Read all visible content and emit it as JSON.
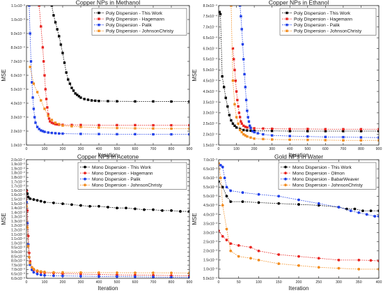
{
  "chart_data": [
    {
      "type": "line",
      "title": "Copper NPs in Methanol",
      "xlabel": "Iteration",
      "ylabel": "MSE",
      "xlim": [
        0,
        900
      ],
      "ylim": [
        0.0001,
        0.0011
      ],
      "x_ticks": [
        "0",
        "100",
        "200",
        "300",
        "400",
        "500",
        "600",
        "700",
        "800",
        "900"
      ],
      "y_ticks": [
        "1.0x10⁻⁴",
        "2.0x10⁻⁴",
        "3.0x10⁻⁴",
        "4.0x10⁻⁴",
        "5.0x10⁻⁴",
        "6.0x10⁻⁴",
        "7.0x10⁻⁴",
        "8.0x10⁻⁴",
        "9.0x10⁻⁴",
        "1.0x10⁻³",
        "1.1x10⁻³"
      ],
      "grid": false,
      "legend_position": "top-right",
      "series": [
        {
          "name": "Poly Dispersion - This Work",
          "color": "#000000",
          "x": [
            140,
            150,
            160,
            170,
            180,
            190,
            200,
            210,
            220,
            230,
            240,
            250,
            260,
            270,
            280,
            290,
            300,
            320,
            340,
            360,
            380,
            400,
            450,
            500,
            600,
            700,
            800,
            900
          ],
          "y": [
            0.0011,
            0.00103,
            0.00098,
            0.00093,
            0.00088,
            0.00082,
            0.00076,
            0.00069,
            0.00062,
            0.00057,
            0.00054,
            0.00051,
            0.00049,
            0.00047,
            0.00046,
            0.00045,
            0.00044,
            0.00043,
            0.000425,
            0.00042,
            0.000418,
            0.000416,
            0.000415,
            0.000414,
            0.000413,
            0.000413,
            0.000412,
            0.000412
          ]
        },
        {
          "name": "Poly Dispersion - Hagemann",
          "color": "#e8231f",
          "x": [
            70,
            80,
            90,
            95,
            100,
            105,
            110,
            115,
            120,
            125,
            130,
            140,
            150,
            160,
            170,
            180,
            200,
            250,
            300,
            400,
            500,
            600,
            700,
            800,
            900
          ],
          "y": [
            0.0011,
            0.00095,
            0.0008,
            0.0007,
            0.0006,
            0.0005,
            0.00043,
            0.00037,
            0.00032,
            0.00029,
            0.00027,
            0.00026,
            0.000255,
            0.00025,
            0.000248,
            0.000246,
            0.000245,
            0.000244,
            0.000244,
            0.000243,
            0.000243,
            0.000243,
            0.000242,
            0.000242,
            0.000242
          ]
        },
        {
          "name": "Poly Dispersion - Palik",
          "color": "#1f3fe8",
          "x": [
            15,
            20,
            25,
            30,
            35,
            40,
            45,
            50,
            60,
            70,
            80,
            90,
            100,
            120,
            140,
            160,
            180,
            200,
            300,
            400,
            500,
            600,
            700,
            800,
            900
          ],
          "y": [
            0.0011,
            0.0009,
            0.0007,
            0.00055,
            0.00044,
            0.00036,
            0.0003,
            0.00026,
            0.00023,
            0.000215,
            0.000205,
            0.0002,
            0.000195,
            0.00019,
            0.000187,
            0.000185,
            0.000183,
            0.000182,
            0.00018,
            0.000179,
            0.000178,
            0.000178,
            0.000177,
            0.000177,
            0.000177
          ]
        },
        {
          "name": "Poly Dispersion - JohnsonChristy",
          "color": "#f28c1e",
          "x": [
            20,
            40,
            60,
            80,
            100,
            120,
            140,
            160,
            180,
            200,
            250,
            300,
            400,
            500,
            600,
            700,
            800,
            900
          ],
          "y": [
            0.00066,
            0.00054,
            0.00048,
            0.00042,
            0.00036,
            0.00031,
            0.00028,
            0.00026,
            0.00025,
            0.00024,
            0.000235,
            0.00023,
            0.000225,
            0.000222,
            0.00022,
            0.000219,
            0.000218,
            0.000218
          ]
        }
      ]
    },
    {
      "type": "line",
      "title": "Copper NPs in Ethanol",
      "xlabel": "Iteration",
      "ylabel": "MSE",
      "xlim": [
        0,
        900
      ],
      "ylim": [
        0.00015,
        0.0008
      ],
      "x_ticks": [
        "0",
        "100",
        "200",
        "300",
        "400",
        "500",
        "600",
        "700",
        "800",
        "900"
      ],
      "y_ticks": [
        "1.5x10⁻⁴",
        "2.0x10⁻⁴",
        "2.5x10⁻⁴",
        "3.0x10⁻⁴",
        "3.5x10⁻⁴",
        "4.0x10⁻⁴",
        "4.5x10⁻⁴",
        "5.0x10⁻⁴",
        "5.5x10⁻⁴",
        "6.0x10⁻⁴",
        "6.5x10⁻⁴",
        "7.0x10⁻⁴",
        "7.5x10⁻⁴",
        "8.0x10⁻⁴"
      ],
      "grid": false,
      "legend_position": "top-right",
      "series": [
        {
          "name": "Poly Dispersion - This Work",
          "color": "#000000",
          "x": [
            5,
            10,
            20,
            30,
            40,
            50,
            60,
            70,
            80,
            90,
            100,
            120,
            140,
            160,
            180,
            200,
            300,
            400,
            500,
            600,
            700,
            800,
            900
          ],
          "y": [
            0.00077,
            0.00076,
            0.00047,
            0.00042,
            0.00037,
            0.00033,
            0.00029,
            0.000265,
            0.00025,
            0.00024,
            0.000232,
            0.000225,
            0.00022,
            0.000218,
            0.000217,
            0.000216,
            0.000216,
            0.000215,
            0.000215,
            0.000215,
            0.000215,
            0.000215,
            0.000215
          ]
        },
        {
          "name": "Poly Dispersion - Hagemann",
          "color": "#e8231f",
          "x": [
            80,
            85,
            90,
            95,
            100,
            105,
            110,
            115,
            120,
            125,
            130,
            140,
            150,
            160,
            180,
            200,
            250,
            300,
            400,
            500,
            600,
            700,
            800,
            900
          ],
          "y": [
            0.0006,
            0.00055,
            0.0005,
            0.00045,
            0.0004,
            0.00036,
            0.00033,
            0.0003,
            0.00028,
            0.00026,
            0.00025,
            0.00024,
            0.000235,
            0.000232,
            0.00023,
            0.000228,
            0.000227,
            0.000226,
            0.000225,
            0.000225,
            0.000224,
            0.000224,
            0.000224,
            0.000224
          ]
        },
        {
          "name": "Poly Dispersion - Palik",
          "color": "#1f3fe8",
          "x": [
            120,
            125,
            130,
            135,
            140,
            145,
            150,
            155,
            160,
            165,
            170,
            175,
            180,
            190,
            200,
            220,
            250,
            300,
            400,
            500,
            600,
            700,
            800,
            900
          ],
          "y": [
            0.0008,
            0.00075,
            0.00069,
            0.00062,
            0.00055,
            0.00048,
            0.00042,
            0.00036,
            0.00031,
            0.00028,
            0.00026,
            0.00024,
            0.00023,
            0.000215,
            0.00021,
            0.000205,
            0.0002,
            0.000195,
            0.000192,
            0.00019,
            0.000188,
            0.000187,
            0.000186,
            0.000185
          ]
        },
        {
          "name": "Poly Dispersion - JohnsonChristy",
          "color": "#f28c1e",
          "x": [
            70,
            80,
            90,
            100,
            110,
            120,
            130,
            140,
            150,
            160,
            180,
            200,
            250,
            300,
            400,
            500,
            600,
            700,
            800,
            900
          ],
          "y": [
            0.0008,
            0.00045,
            0.00034,
            0.00028,
            0.00025,
            0.00022,
            0.00021,
            0.0002,
            0.000195,
            0.00019,
            0.000185,
            0.00018,
            0.000178,
            0.000176,
            0.000175,
            0.000174,
            0.000173,
            0.000172,
            0.000172,
            0.000172
          ]
        }
      ]
    },
    {
      "type": "line",
      "title": "Copper NPs in Acetone",
      "xlabel": "Iteration",
      "ylabel": "MSE",
      "xlim": [
        0,
        900
      ],
      "ylim": [
        0.006,
        0.02
      ],
      "x_ticks": [
        "0",
        "100",
        "200",
        "300",
        "400",
        "500",
        "600",
        "700",
        "800",
        "900"
      ],
      "y_ticks": [
        "6.0x10⁻³",
        "6.5x10⁻³",
        "7.0x10⁻³",
        "7.5x10⁻³",
        "8.0x10⁻³",
        "8.5x10⁻³",
        "9.0x10⁻³",
        "9.5x10⁻³",
        "1.0x10⁻²",
        "1.1x10⁻²",
        "1.1x10⁻²",
        "1.2x10⁻²",
        "1.2x10⁻²",
        "1.3x10⁻²",
        "1.3x10⁻²",
        "1.4x10⁻²",
        "1.4x10⁻²",
        "1.5x10⁻²",
        "1.5x10⁻²",
        "1.6x10⁻²",
        "1.6x10⁻²",
        "1.7x10⁻²",
        "1.7x10⁻²",
        "1.8x10⁻²",
        "1.8x10⁻²",
        "1.9x10⁻²",
        "1.9x10⁻²",
        "2.0x10⁻²"
      ],
      "grid": false,
      "legend_position": "top-right",
      "series": [
        {
          "name": "Mono Dispersion - This Work",
          "color": "#000000",
          "x": [
            0,
            5,
            10,
            20,
            40,
            60,
            80,
            100,
            150,
            200,
            250,
            300,
            350,
            400,
            450,
            500,
            550,
            600,
            650,
            700,
            750,
            800,
            850,
            900
          ],
          "y": [
            0.0164,
            0.016,
            0.0156,
            0.0154,
            0.0153,
            0.0152,
            0.0151,
            0.015,
            0.0149,
            0.0148,
            0.0147,
            0.0146,
            0.0145,
            0.0145,
            0.0144,
            0.0143,
            0.0143,
            0.0142,
            0.0141,
            0.0141,
            0.014,
            0.014,
            0.0139,
            0.0139
          ]
        },
        {
          "name": "Mono Dispersion - Hagemann",
          "color": "#e8231f",
          "x": [
            0,
            5,
            10,
            15,
            20,
            30,
            40,
            60,
            80,
            100,
            150,
            200,
            300,
            400,
            500,
            600,
            700,
            800,
            900
          ],
          "y": [
            0.0163,
            0.014,
            0.011,
            0.009,
            0.008,
            0.0073,
            0.007,
            0.0068,
            0.0067,
            0.00665,
            0.0066,
            0.00655,
            0.0065,
            0.00645,
            0.0064,
            0.00638,
            0.00635,
            0.00632,
            0.0063
          ]
        },
        {
          "name": "Mono Dispersion - Palik",
          "color": "#1f3fe8",
          "x": [
            0,
            5,
            10,
            15,
            20,
            30,
            40,
            60,
            80,
            100,
            150,
            200,
            300,
            400,
            500,
            600,
            700,
            800,
            900
          ],
          "y": [
            0.015,
            0.0125,
            0.01,
            0.0085,
            0.0076,
            0.007,
            0.0067,
            0.0065,
            0.0064,
            0.00635,
            0.0063,
            0.00628,
            0.00625,
            0.00622,
            0.0062,
            0.00618,
            0.00615,
            0.00612,
            0.0061
          ]
        },
        {
          "name": "Mono Dispersion - JohnsonChristy",
          "color": "#f28c1e",
          "x": [
            0,
            5,
            10,
            15,
            20,
            30,
            40,
            60,
            80,
            100,
            150,
            200,
            300,
            400,
            500,
            600,
            700,
            800,
            900
          ],
          "y": [
            0.0145,
            0.012,
            0.0098,
            0.0085,
            0.0078,
            0.0073,
            0.0071,
            0.0069,
            0.0068,
            0.00675,
            0.0067,
            0.0067,
            0.00668,
            0.00667,
            0.00666,
            0.00665,
            0.00665,
            0.00664,
            0.00664
          ]
        }
      ]
    },
    {
      "type": "line",
      "title": "Gold NPs in Water",
      "xlabel": "Iteration",
      "ylabel": "MSE",
      "xlim": [
        0,
        400
      ],
      "ylim": [
        0.0005,
        0.007
      ],
      "x_ticks": [
        "0",
        "50",
        "100",
        "150",
        "200",
        "250",
        "300",
        "350",
        "400"
      ],
      "y_ticks": [
        "5.0x10⁻⁴",
        "1.0x10⁻³",
        "1.5x10⁻³",
        "2.0x10⁻³",
        "2.5x10⁻³",
        "3.0x10⁻³",
        "3.5x10⁻³",
        "4.0x10⁻³",
        "4.5x10⁻³",
        "5.0x10⁻³",
        "5.5x10⁻³",
        "6.0x10⁻³",
        "6.5x10⁻³",
        "7.0x10⁻³"
      ],
      "grid": false,
      "legend_position": "top-right",
      "series": [
        {
          "name": "Mono Dispersion - This Work",
          "color": "#000000",
          "x": [
            0,
            10,
            20,
            30,
            60,
            100,
            150,
            200,
            250,
            300,
            320,
            340,
            360,
            380,
            400
          ],
          "y": [
            0.0058,
            0.0055,
            0.005,
            0.0047,
            0.0047,
            0.00465,
            0.0046,
            0.00455,
            0.0045,
            0.0044,
            0.0043,
            0.0043,
            0.0042,
            0.0042,
            0.0042
          ]
        },
        {
          "name": "Mono Dispersion - Olmon",
          "color": "#e8231f",
          "x": [
            0,
            10,
            20,
            30,
            50,
            80,
            100,
            150,
            200,
            250,
            300,
            350,
            380,
            400
          ],
          "y": [
            0.0031,
            0.0028,
            0.0026,
            0.0024,
            0.0023,
            0.0022,
            0.002,
            0.0018,
            0.0017,
            0.0016,
            0.0015,
            0.0015,
            0.00148,
            0.00145
          ]
        },
        {
          "name": "Mono Dispersion - BabarWeaver",
          "color": "#1f3fe8",
          "x": [
            0,
            5,
            10,
            15,
            20,
            30,
            60,
            100,
            150,
            200,
            250,
            300,
            330,
            350,
            370,
            390,
            400
          ],
          "y": [
            0.0068,
            0.0067,
            0.0066,
            0.006,
            0.0055,
            0.0053,
            0.0052,
            0.0051,
            0.005,
            0.0048,
            0.0046,
            0.0044,
            0.0042,
            0.0041,
            0.004,
            0.0039,
            0.0039
          ]
        },
        {
          "name": "Mono Dispersion - JohnsonChristy",
          "color": "#f28c1e",
          "x": [
            0,
            5,
            10,
            20,
            30,
            50,
            80,
            100,
            150,
            200,
            250,
            300,
            350,
            400
          ],
          "y": [
            0.0068,
            0.006,
            0.0045,
            0.0032,
            0.002,
            0.0017,
            0.0016,
            0.0015,
            0.0013,
            0.0012,
            0.0011,
            0.00105,
            0.001,
            0.001
          ]
        }
      ]
    }
  ]
}
